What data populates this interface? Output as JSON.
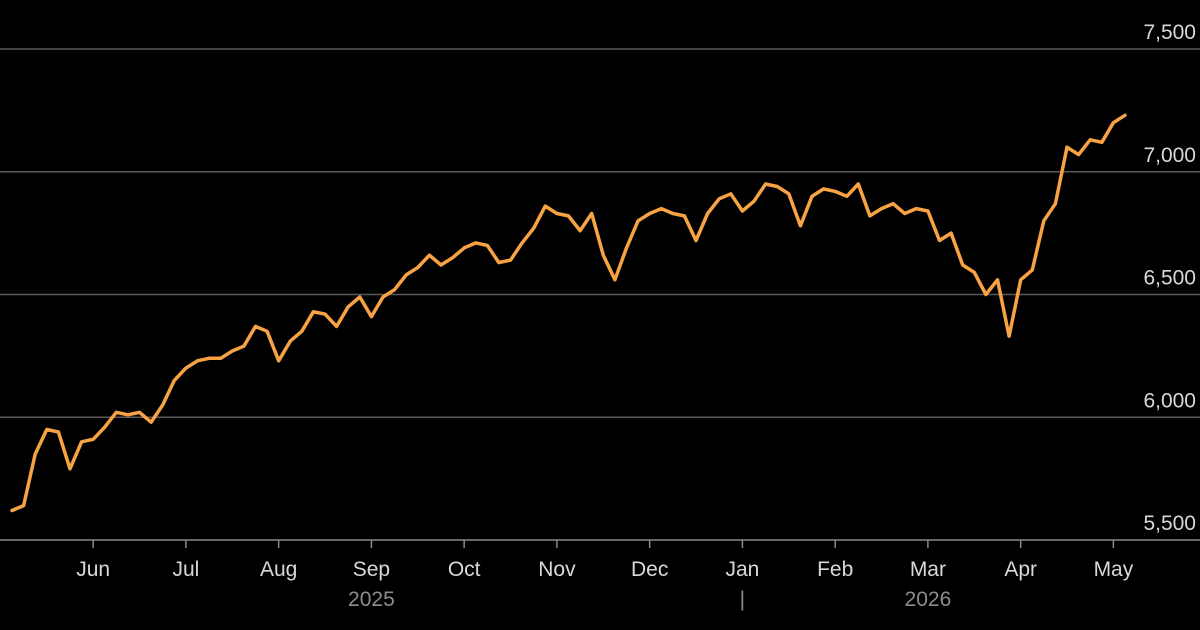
{
  "chart_data": {
    "type": "line",
    "categories": [
      null,
      null,
      null,
      null,
      null,
      null,
      null,
      "Jun",
      null,
      null,
      null,
      null,
      null,
      null,
      null,
      "Jul",
      null,
      null,
      null,
      null,
      null,
      null,
      null,
      "Aug",
      null,
      null,
      null,
      null,
      null,
      null,
      null,
      "Sep",
      null,
      null,
      null,
      null,
      null,
      null,
      null,
      "Oct",
      null,
      null,
      null,
      null,
      null,
      null,
      null,
      "Nov",
      null,
      null,
      null,
      null,
      null,
      null,
      null,
      "Dec",
      null,
      null,
      null,
      null,
      null,
      null,
      null,
      "Jan",
      null,
      null,
      null,
      null,
      null,
      null,
      null,
      "Feb",
      null,
      null,
      null,
      null,
      null,
      null,
      null,
      "Mar",
      null,
      null,
      null,
      null,
      null,
      null,
      null,
      "Apr",
      null,
      null,
      null,
      null,
      null,
      null,
      null,
      "May",
      null
    ],
    "year_labels": [
      "2025",
      "2026"
    ],
    "year_divider": "|",
    "series": [
      {
        "color": "#f7a343",
        "values": [
          5620,
          5640,
          5850,
          5950,
          5940,
          5790,
          5900,
          5910,
          5960,
          6020,
          6010,
          6020,
          5980,
          6050,
          6150,
          6200,
          6230,
          6240,
          6240,
          6270,
          6290,
          6370,
          6350,
          6230,
          6310,
          6350,
          6430,
          6420,
          6370,
          6450,
          6490,
          6410,
          6490,
          6520,
          6580,
          6610,
          6660,
          6620,
          6650,
          6690,
          6710,
          6700,
          6630,
          6640,
          6710,
          6770,
          6860,
          6830,
          6820,
          6760,
          6830,
          6660,
          6560,
          6690,
          6800,
          6830,
          6850,
          6830,
          6820,
          6720,
          6830,
          6890,
          6910,
          6840,
          6880,
          6950,
          6940,
          6910,
          6780,
          6900,
          6930,
          6920,
          6900,
          6950,
          6820,
          6850,
          6870,
          6830,
          6850,
          6840,
          6720,
          6750,
          6620,
          6590,
          6500,
          6560,
          6330,
          6560,
          6600,
          6800,
          6870,
          7100,
          7070,
          7130,
          7120,
          7200,
          7230
        ]
      }
    ],
    "ylim": [
      5500,
      7500
    ],
    "yticks": [
      {
        "value": 5500,
        "label": "5,500"
      },
      {
        "value": 6000,
        "label": "6,000"
      },
      {
        "value": 6500,
        "label": "6,500"
      },
      {
        "value": 7000,
        "label": "7,000"
      },
      {
        "value": 7500,
        "label": "7,500"
      }
    ],
    "grid": true
  }
}
